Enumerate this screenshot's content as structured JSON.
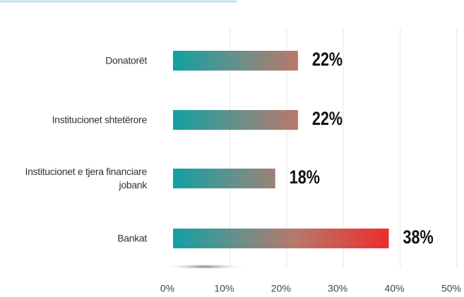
{
  "chart_data": {
    "type": "bar",
    "orientation": "horizontal",
    "categories": [
      "Donatorët",
      "Institucionet shtetërore",
      "Institucionet e tjera financiare jobank",
      "Bankat"
    ],
    "values": [
      22,
      22,
      18,
      38
    ],
    "value_labels": [
      "22%",
      "22%",
      "18%",
      "38%"
    ],
    "xlim": [
      0,
      50
    ],
    "xticks": [
      {
        "value": 0,
        "label": "0%"
      },
      {
        "value": 10,
        "label": "10%"
      },
      {
        "value": 20,
        "label": "20%"
      },
      {
        "value": 30,
        "label": "30%"
      },
      {
        "value": 40,
        "label": "40%"
      },
      {
        "value": 50,
        "label": "50%"
      }
    ],
    "grid": true
  }
}
